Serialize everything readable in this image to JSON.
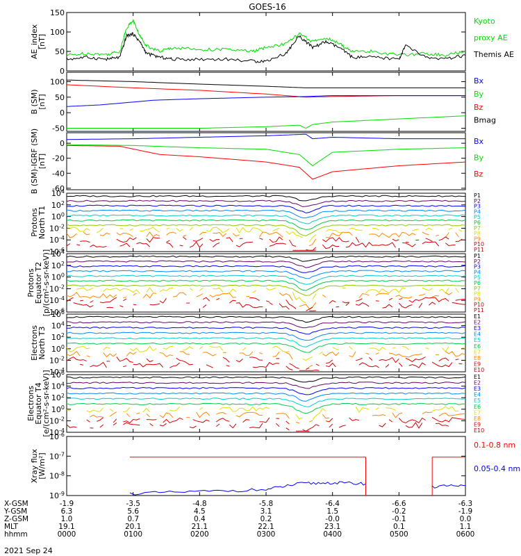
{
  "title": "GOES-16",
  "date_label": "2021 Sep 24",
  "colors": {
    "black": "#000000",
    "red": "#ff0000",
    "green": "#00dd00",
    "blue": "#0000ff",
    "green_bright": "#00ee00",
    "darkred": "#cc0000"
  },
  "chart_data": [
    {
      "panel": "ae_index",
      "type": "line",
      "ylabel": [
        "AE_index",
        "[nT]"
      ],
      "yticks": [
        "150",
        "100",
        "50",
        "0"
      ],
      "ylim": [
        0,
        150
      ],
      "legend": [
        {
          "label": "Kyoto",
          "color": "#00dd00"
        },
        {
          "label": "proxy AE",
          "color": "#00dd00"
        },
        {
          "label": "Themis AE",
          "color": "#000000"
        }
      ],
      "series": [
        {
          "name": "Kyoto proxy AE",
          "color": "#00dd00",
          "x": [
            0,
            0.3,
            0.6,
            0.8,
            0.9,
            1.0,
            1.1,
            1.2,
            1.4,
            1.6,
            2.0,
            2.4,
            2.8,
            3.0,
            3.3,
            3.5,
            3.7,
            3.9,
            4.1,
            4.3,
            4.6,
            5.0,
            5.4,
            5.7,
            6.0
          ],
          "y": [
            40,
            45,
            42,
            50,
            110,
            130,
            90,
            65,
            50,
            60,
            55,
            55,
            50,
            60,
            70,
            95,
            75,
            85,
            70,
            50,
            50,
            40,
            45,
            40,
            50
          ]
        },
        {
          "name": "Themis AE",
          "color": "#000000",
          "x": [
            0,
            0.3,
            0.6,
            0.8,
            0.9,
            1.0,
            1.1,
            1.2,
            1.4,
            1.6,
            2.0,
            2.4,
            2.8,
            3.0,
            3.3,
            3.5,
            3.7,
            3.9,
            4.1,
            4.3,
            4.6,
            5.0,
            5.1,
            5.4,
            5.7,
            6.0
          ],
          "y": [
            30,
            35,
            30,
            35,
            90,
            95,
            75,
            45,
            35,
            30,
            30,
            30,
            25,
            25,
            45,
            90,
            60,
            75,
            60,
            35,
            35,
            30,
            65,
            35,
            30,
            40
          ]
        }
      ]
    },
    {
      "panel": "b_sm",
      "type": "line",
      "ylabel": [
        "B (SM)",
        "[nT]"
      ],
      "yticks": [
        "100",
        "50",
        "0",
        "-50"
      ],
      "ylim": [
        -60,
        130
      ],
      "legend": [
        {
          "label": "Bx",
          "color": "#0000ff"
        },
        {
          "label": "By",
          "color": "#00dd00"
        },
        {
          "label": "Bz",
          "color": "#ff0000"
        },
        {
          "label": "Bmag",
          "color": "#000000"
        }
      ],
      "series": [
        {
          "name": "Bmag",
          "color": "#000000",
          "x": [
            0,
            1,
            2,
            3,
            3.6,
            4,
            5,
            6
          ],
          "y": [
            105,
            100,
            92,
            85,
            80,
            80,
            80,
            80
          ]
        },
        {
          "name": "Bz",
          "color": "#ff0000",
          "x": [
            0,
            1,
            2,
            3,
            3.6,
            4,
            5,
            6
          ],
          "y": [
            90,
            80,
            72,
            60,
            50,
            52,
            55,
            55
          ]
        },
        {
          "name": "Bx",
          "color": "#0000ff",
          "x": [
            0,
            0.5,
            1.3,
            2,
            3,
            3.6,
            4,
            5,
            6
          ],
          "y": [
            20,
            25,
            40,
            45,
            50,
            52,
            55,
            55,
            55
          ]
        },
        {
          "name": "By",
          "color": "#00dd00",
          "x": [
            0,
            1,
            2,
            3,
            3.5,
            3.6,
            3.7,
            4,
            5,
            6
          ],
          "y": [
            -50,
            -50,
            -50,
            -45,
            -40,
            -50,
            -38,
            -30,
            -20,
            -10
          ]
        }
      ]
    },
    {
      "panel": "b_minus_igrf",
      "type": "line",
      "ylabel": [
        "B (SM)-IGRF (SM)",
        "[nT]"
      ],
      "yticks": [
        "0",
        "-20",
        "-40",
        "-60"
      ],
      "ylim": [
        -62,
        14
      ],
      "legend": [
        {
          "label": "Bx",
          "color": "#0000ff"
        },
        {
          "label": "By",
          "color": "#00dd00"
        },
        {
          "label": "Bz",
          "color": "#ff0000"
        }
      ],
      "series": [
        {
          "name": "Bx",
          "color": "#0000ff",
          "x": [
            0,
            1,
            2,
            3,
            3.6,
            3.7,
            4,
            5,
            6
          ],
          "y": [
            5,
            6,
            8,
            10,
            12,
            6,
            8,
            6,
            6
          ]
        },
        {
          "name": "By",
          "color": "#00dd00",
          "x": [
            0,
            1,
            2,
            3,
            3.5,
            3.7,
            4,
            5,
            6
          ],
          "y": [
            -2,
            -3,
            -6,
            -8,
            -15,
            -30,
            -12,
            -8,
            -6
          ]
        },
        {
          "name": "Bz",
          "color": "#ff0000",
          "x": [
            0,
            0.8,
            1.4,
            2,
            3,
            3.5,
            3.7,
            4,
            5,
            6
          ],
          "y": [
            -3,
            -4,
            -15,
            -18,
            -25,
            -32,
            -48,
            -38,
            -30,
            -25
          ]
        }
      ]
    },
    {
      "panel": "protons_t1",
      "type": "line",
      "ylabel": [
        "Protons",
        "North T1"
      ],
      "yticks": [
        "10^4",
        "10^2",
        "10^0",
        "10^-2",
        "10^-4",
        "10^-6"
      ],
      "ylim": [
        -6,
        4
      ],
      "legend": [
        {
          "label": "P1",
          "color": "#000000"
        },
        {
          "label": "P2",
          "color": "#660066"
        },
        {
          "label": "P3",
          "color": "#0000ff"
        },
        {
          "label": "P4",
          "color": "#0088ff"
        },
        {
          "label": "P5",
          "color": "#00cccc"
        },
        {
          "label": "P6",
          "color": "#00cc44"
        },
        {
          "label": "P7",
          "color": "#88cc00"
        },
        {
          "label": "P8",
          "color": "#dddd00"
        },
        {
          "label": "P9",
          "color": "#ff8800"
        },
        {
          "label": "P10",
          "color": "#dd0000"
        },
        {
          "label": "P11",
          "color": "#cc0000"
        }
      ]
    },
    {
      "panel": "protons_t2",
      "type": "line",
      "ylabel": [
        "Protons",
        "Equator T2",
        "[p/(cm^2-s-sr-keV)]"
      ],
      "yticks": [
        "10^4",
        "10^2",
        "10^0",
        "10^-2",
        "10^-4",
        "10^-6"
      ],
      "ylim": [
        -6,
        4
      ],
      "legend": [
        {
          "label": "P1",
          "color": "#000000"
        },
        {
          "label": "P2",
          "color": "#660066"
        },
        {
          "label": "P3",
          "color": "#0000ff"
        },
        {
          "label": "P4",
          "color": "#0088ff"
        },
        {
          "label": "P5",
          "color": "#00cccc"
        },
        {
          "label": "P6",
          "color": "#00cc44"
        },
        {
          "label": "P7",
          "color": "#88cc00"
        },
        {
          "label": "P8",
          "color": "#dddd00"
        },
        {
          "label": "P9",
          "color": "#ff8800"
        },
        {
          "label": "P10",
          "color": "#dd0000"
        },
        {
          "label": "P11",
          "color": "#cc0000"
        }
      ]
    },
    {
      "panel": "electrons_t3",
      "type": "line",
      "ylabel": [
        "Electrons",
        "North T3"
      ],
      "yticks": [
        "10^6",
        "10^4",
        "10^2",
        "10^0",
        "10^-2",
        "10^-4"
      ],
      "ylim": [
        -4,
        6
      ],
      "legend": [
        {
          "label": "E1",
          "color": "#000000"
        },
        {
          "label": "E2",
          "color": "#660066"
        },
        {
          "label": "E3",
          "color": "#0000ff"
        },
        {
          "label": "E4",
          "color": "#0088ff"
        },
        {
          "label": "E5",
          "color": "#00cccc"
        },
        {
          "label": "E6",
          "color": "#00cc44"
        },
        {
          "label": "E7",
          "color": "#dddd00"
        },
        {
          "label": "E8",
          "color": "#ff8800"
        },
        {
          "label": "E9",
          "color": "#dd0000"
        },
        {
          "label": "E10",
          "color": "#cc0000"
        }
      ]
    },
    {
      "panel": "electrons_t4",
      "type": "line",
      "ylabel": [
        "Electrons",
        "Equator T4",
        "[e/(cm^2-s-sr-keV)]"
      ],
      "yticks": [
        "10^6",
        "10^4",
        "10^2",
        "10^0",
        "10^-2",
        "10^-4"
      ],
      "ylim": [
        -4,
        6
      ],
      "legend": [
        {
          "label": "E1",
          "color": "#000000"
        },
        {
          "label": "E2",
          "color": "#660066"
        },
        {
          "label": "E3",
          "color": "#0000ff"
        },
        {
          "label": "E4",
          "color": "#0088ff"
        },
        {
          "label": "E5",
          "color": "#00cccc"
        },
        {
          "label": "E6",
          "color": "#00cc44"
        },
        {
          "label": "E7",
          "color": "#dddd00"
        },
        {
          "label": "E8",
          "color": "#ff8800"
        },
        {
          "label": "E9",
          "color": "#dd0000"
        },
        {
          "label": "E10",
          "color": "#cc0000"
        }
      ]
    },
    {
      "panel": "xray",
      "type": "line",
      "ylabel": [
        "Xray flux",
        "[W/m^2]"
      ],
      "yticks": [
        "10^-6",
        "10^-7",
        "10^-8",
        "10^-9"
      ],
      "ylim": [
        -9,
        -6
      ],
      "legend": [
        {
          "label": "0.1-0.8 nm",
          "color": "#ff0000"
        },
        {
          "label": "0.05-0.4 nm",
          "color": "#0000ff"
        }
      ],
      "series": [
        {
          "name": "0.1-0.8 nm",
          "color": "#ff0000",
          "segments": [
            {
              "x": [
                0.95,
                4.5
              ],
              "y": [
                -7.05,
                -7.05
              ]
            },
            {
              "x": [
                5.5,
                6.0
              ],
              "y": [
                -7.05,
                -7.05
              ]
            }
          ]
        },
        {
          "name": "0.05-0.4 nm",
          "color": "#0000ff",
          "segments": [
            {
              "x": [
                0.95,
                2.0,
                3.0,
                3.5,
                4.0,
                4.5
              ],
              "y": [
                -8.9,
                -8.8,
                -8.7,
                -8.4,
                -8.35,
                -8.4
              ]
            },
            {
              "x": [
                5.5,
                6.0
              ],
              "y": [
                -8.55,
                -8.5
              ]
            }
          ]
        }
      ]
    }
  ],
  "xaxis": {
    "ticks_x": [
      0,
      1,
      2,
      3,
      4,
      5,
      6
    ],
    "rows": [
      {
        "label": "X-GSM",
        "values": [
          "-1.9",
          "-3.5",
          "-4.8",
          "-5.8",
          "-6.4",
          "-6.6",
          "-6.3"
        ]
      },
      {
        "label": "Y-GSM",
        "values": [
          "6.3",
          "5.6",
          "4.5",
          "3.1",
          "1.5",
          "-0.2",
          "-1.9"
        ]
      },
      {
        "label": "Z-GSM",
        "values": [
          "1.0",
          "0.7",
          "0.4",
          "0.2",
          "-0.0",
          "-0.1",
          "0.0"
        ]
      },
      {
        "label": "MLT",
        "values": [
          "19.1",
          "20.1",
          "21.1",
          "22.1",
          "23.1",
          "0.1",
          "1.1"
        ]
      },
      {
        "label": "hhmm",
        "values": [
          "0000",
          "0100",
          "0200",
          "0300",
          "0400",
          "0500",
          "0600"
        ]
      }
    ]
  }
}
